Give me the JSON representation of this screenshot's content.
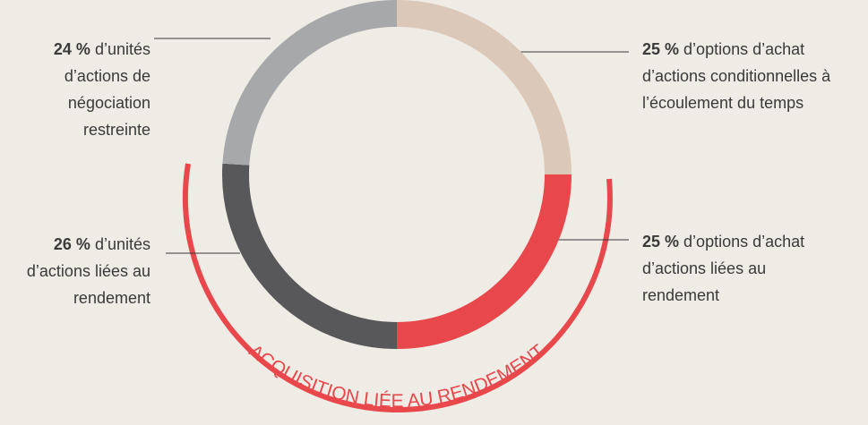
{
  "chart_data": {
    "type": "donut",
    "categories": [
      "d’options d’achat d’actions conditionnelles à l’écoulement du temps",
      "d’options d’achat d’actions liées au rendement",
      "d’unités d’actions liées au rendement",
      "d’unités d’actions de négociation restreinte"
    ],
    "values": [
      25,
      25,
      26,
      24
    ],
    "value_labels": [
      "25 %",
      "25 %",
      "26 %",
      "24 %"
    ],
    "colors": [
      "#dcc8b8",
      "#e8474c",
      "#58585a",
      "#a7a8aa"
    ],
    "annotation": "ACQUISITION LIÉE AU RENDEMENT"
  }
}
